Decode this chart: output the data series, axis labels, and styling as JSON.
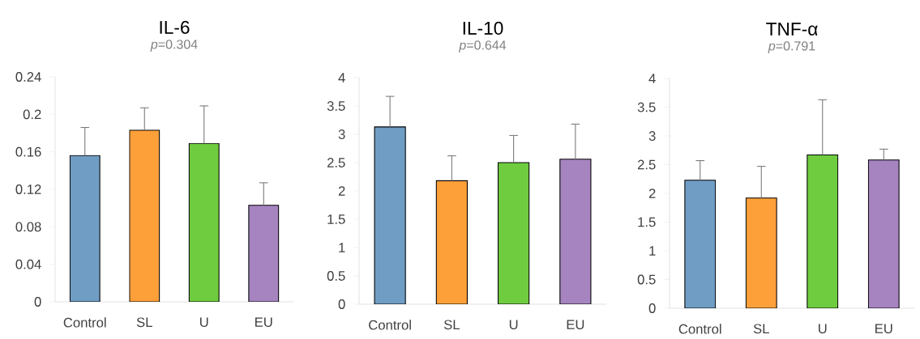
{
  "chart_data": [
    {
      "type": "bar",
      "title": "IL-6",
      "subtitle": "*p*=0.304",
      "categories": [
        "Control",
        "SL",
        "U",
        "EU"
      ],
      "values": [
        0.156,
        0.183,
        0.169,
        0.103
      ],
      "colors": [
        "#6f9dc4",
        "#fda03a",
        "#6fcc3f",
        "#a584c0"
      ],
      "errors": [
        [
          0.156,
          0.186
        ],
        [
          0.183,
          0.207
        ],
        [
          0.169,
          0.209
        ],
        [
          0.103,
          0.127
        ]
      ],
      "ylim": [
        0,
        0.24
      ],
      "yticks": [
        0,
        0.04,
        0.08,
        0.12,
        0.16,
        0.2,
        0.24
      ]
    },
    {
      "type": "bar",
      "title": "IL-10",
      "subtitle": "*p*=0.644",
      "categories": [
        "Control",
        "SL",
        "U",
        "EU"
      ],
      "values": [
        3.13,
        2.18,
        2.5,
        2.56
      ],
      "colors": [
        "#6f9dc4",
        "#fda03a",
        "#6fcc3f",
        "#a584c0"
      ],
      "errors": [
        [
          3.13,
          3.67
        ],
        [
          2.18,
          2.62
        ],
        [
          2.5,
          2.98
        ],
        [
          2.56,
          3.18
        ]
      ],
      "ylim": [
        0,
        4
      ],
      "yticks": [
        0,
        0.5,
        1,
        1.5,
        2,
        2.5,
        3,
        3.5,
        4
      ]
    },
    {
      "type": "bar",
      "title": "TNF-α",
      "subtitle": "*p*=0.791",
      "categories": [
        "Control",
        "SL",
        "U",
        "EU"
      ],
      "values": [
        2.23,
        1.92,
        2.67,
        2.58
      ],
      "colors": [
        "#6f9dc4",
        "#fda03a",
        "#6fcc3f",
        "#a584c0"
      ],
      "errors": [
        [
          2.23,
          2.57
        ],
        [
          1.92,
          2.47
        ],
        [
          2.67,
          3.63
        ],
        [
          2.58,
          2.77
        ]
      ],
      "ylim": [
        0,
        4
      ],
      "yticks": [
        0,
        0.5,
        1,
        1.5,
        2,
        2.5,
        3,
        3.5,
        4
      ]
    }
  ]
}
